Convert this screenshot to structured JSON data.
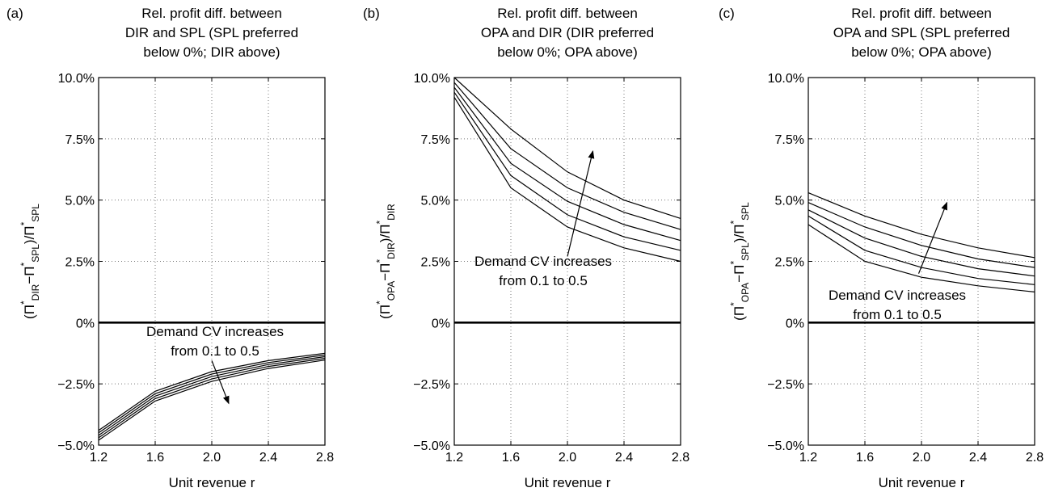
{
  "chart_data": [
    {
      "type": "line",
      "panel_label": "(a)",
      "title_lines": [
        "Rel. profit diff. between",
        "DIR and SPL (SPL preferred",
        "below 0%; DIR above)"
      ],
      "xlabel": "Unit revenue r",
      "ylabel_parts": {
        "open": "(Π",
        "star": "*",
        "sub1": "DIR",
        "minus": "−Π",
        "sub2": "SPL",
        "close": ")/Π",
        "sub3": "SPL"
      },
      "x": [
        1.2,
        1.6,
        2.0,
        2.4,
        2.8
      ],
      "xticks": [
        1.2,
        1.6,
        2.0,
        2.4,
        2.8
      ],
      "xtick_labels": [
        "1.2",
        "1.6",
        "2.0",
        "2.4",
        "2.8"
      ],
      "xlim": [
        1.2,
        2.8
      ],
      "yticks": [
        -5.0,
        -2.5,
        0,
        2.5,
        5.0,
        7.5,
        10.0
      ],
      "ytick_labels": [
        "−5.0%",
        "−2.5%",
        "0%",
        "2.5%",
        "5.0%",
        "7.5%",
        "10.0%"
      ],
      "ylim": [
        -5.0,
        10.0
      ],
      "grid": true,
      "zero_line": true,
      "series": [
        {
          "values": [
            -4.4,
            -2.8,
            -2.0,
            -1.55,
            -1.25
          ]
        },
        {
          "values": [
            -4.5,
            -2.9,
            -2.1,
            -1.63,
            -1.32
          ]
        },
        {
          "values": [
            -4.6,
            -3.0,
            -2.2,
            -1.71,
            -1.39
          ]
        },
        {
          "values": [
            -4.7,
            -3.1,
            -2.3,
            -1.79,
            -1.46
          ]
        },
        {
          "values": [
            -4.8,
            -3.2,
            -2.4,
            -1.87,
            -1.53
          ]
        }
      ],
      "annotation": {
        "lines": [
          "Demand CV increases",
          "from 0.1 to 0.5"
        ],
        "arrow_from": [
          2.0,
          -1.55
        ],
        "arrow_to": [
          2.12,
          -3.3
        ]
      }
    },
    {
      "type": "line",
      "panel_label": "(b)",
      "title_lines": [
        "Rel. profit diff. between",
        "OPA and DIR (DIR preferred",
        "below 0%; OPA above)"
      ],
      "xlabel": "Unit revenue r",
      "ylabel_parts": {
        "open": "(Π",
        "star": "*",
        "sub1": "OPA",
        "minus": "−Π",
        "sub2": "DIR",
        "close": ")/Π",
        "sub3": "DIR"
      },
      "x": [
        1.2,
        1.6,
        2.0,
        2.4,
        2.8
      ],
      "xticks": [
        1.2,
        1.6,
        2.0,
        2.4,
        2.8
      ],
      "xtick_labels": [
        "1.2",
        "1.6",
        "2.0",
        "2.4",
        "2.8"
      ],
      "xlim": [
        1.2,
        2.8
      ],
      "yticks": [
        -5.0,
        -2.5,
        0,
        2.5,
        5.0,
        7.5,
        10.0
      ],
      "ytick_labels": [
        "−5.0%",
        "−2.5%",
        "0%",
        "2.5%",
        "5.0%",
        "7.5%",
        "10.0%"
      ],
      "ylim": [
        -5.0,
        10.0
      ],
      "grid": true,
      "zero_line": true,
      "series": [
        {
          "values": [
            9.2,
            5.5,
            3.9,
            3.05,
            2.5
          ]
        },
        {
          "values": [
            9.4,
            6.0,
            4.4,
            3.5,
            2.95
          ]
        },
        {
          "values": [
            9.6,
            6.5,
            4.95,
            4.0,
            3.35
          ]
        },
        {
          "values": [
            9.8,
            7.1,
            5.5,
            4.5,
            3.8
          ]
        },
        {
          "values": [
            10.0,
            7.9,
            6.15,
            5.0,
            4.25
          ]
        }
      ],
      "annotation": {
        "lines": [
          "Demand CV increases",
          "from 0.1 to 0.5"
        ],
        "arrow_from": [
          2.0,
          2.7
        ],
        "arrow_to": [
          2.18,
          7.0
        ]
      }
    },
    {
      "type": "line",
      "panel_label": "(c)",
      "title_lines": [
        "Rel. profit diff. between",
        "OPA and SPL (SPL preferred",
        "below 0%; OPA above)"
      ],
      "xlabel": "Unit revenue r",
      "ylabel_parts": {
        "open": "(Π",
        "star": "*",
        "sub1": "OPA",
        "minus": "−Π",
        "sub2": "SPL",
        "close": ")/Π",
        "sub3": "SPL"
      },
      "x": [
        1.2,
        1.6,
        2.0,
        2.4,
        2.8
      ],
      "xticks": [
        1.2,
        1.6,
        2.0,
        2.4,
        2.8
      ],
      "xtick_labels": [
        "1.2",
        "1.6",
        "2.0",
        "2.4",
        "2.8"
      ],
      "xlim": [
        1.2,
        2.8
      ],
      "yticks": [
        -5.0,
        -2.5,
        0,
        2.5,
        5.0,
        7.5,
        10.0
      ],
      "ytick_labels": [
        "−5.0%",
        "−2.5%",
        "0%",
        "2.5%",
        "5.0%",
        "7.5%",
        "10.0%"
      ],
      "ylim": [
        -5.0,
        10.0
      ],
      "grid": true,
      "zero_line": true,
      "series": [
        {
          "values": [
            4.0,
            2.5,
            1.85,
            1.5,
            1.25
          ]
        },
        {
          "values": [
            4.35,
            2.95,
            2.25,
            1.8,
            1.55
          ]
        },
        {
          "values": [
            4.6,
            3.45,
            2.7,
            2.2,
            1.9
          ]
        },
        {
          "values": [
            4.9,
            3.9,
            3.15,
            2.6,
            2.25
          ]
        },
        {
          "values": [
            5.3,
            4.35,
            3.6,
            3.05,
            2.65
          ]
        }
      ],
      "annotation": {
        "lines": [
          "Demand CV increases",
          "from 0.1 to 0.5"
        ],
        "arrow_from": [
          1.98,
          2.0
        ],
        "arrow_to": [
          2.18,
          4.9
        ]
      }
    }
  ]
}
